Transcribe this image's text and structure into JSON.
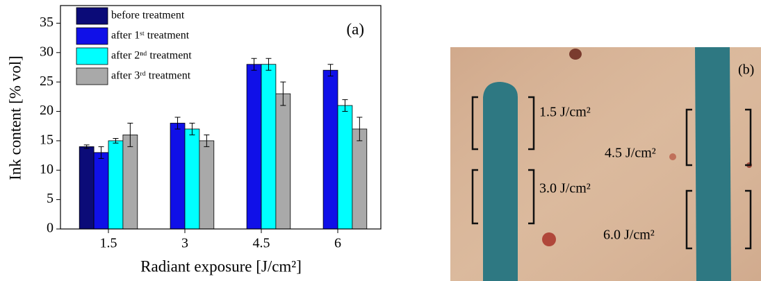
{
  "chart_data": {
    "type": "bar",
    "annotation": "(a)",
    "x_label": "Radiant exposure [J/cm²]",
    "y_label": "Ink content [% vol]",
    "categories": [
      "1.5",
      "3",
      "4.5",
      "6"
    ],
    "series": [
      {
        "name": "before treatment",
        "color": "#0b0b78",
        "values": [
          14,
          null,
          null,
          null
        ],
        "errors": [
          0.3,
          null,
          null,
          null
        ]
      },
      {
        "name": "after 1ˢᵗ treatment",
        "color": "#1010e8",
        "values": [
          13,
          18,
          28,
          27
        ],
        "errors": [
          1,
          1,
          1,
          1
        ]
      },
      {
        "name": "after 2ⁿᵈ treatment",
        "color": "#00ffff",
        "values": [
          15,
          17,
          28,
          21
        ],
        "errors": [
          0.4,
          1,
          1,
          1
        ]
      },
      {
        "name": "after 3ʳᵈ treatment",
        "color": "#a9a9a9",
        "values": [
          16,
          15,
          23,
          17
        ],
        "errors": [
          2,
          1,
          2,
          2
        ]
      }
    ],
    "ylim": [
      0,
      38
    ],
    "yticks": [
      0,
      5,
      10,
      15,
      20,
      25,
      30,
      35
    ],
    "legend": "upper left"
  },
  "photo": {
    "label": "(b)",
    "annotations": [
      "1.5 J/cm²",
      "3.0 J/cm²",
      "4.5 J/cm²",
      "6.0 J/cm²"
    ]
  }
}
